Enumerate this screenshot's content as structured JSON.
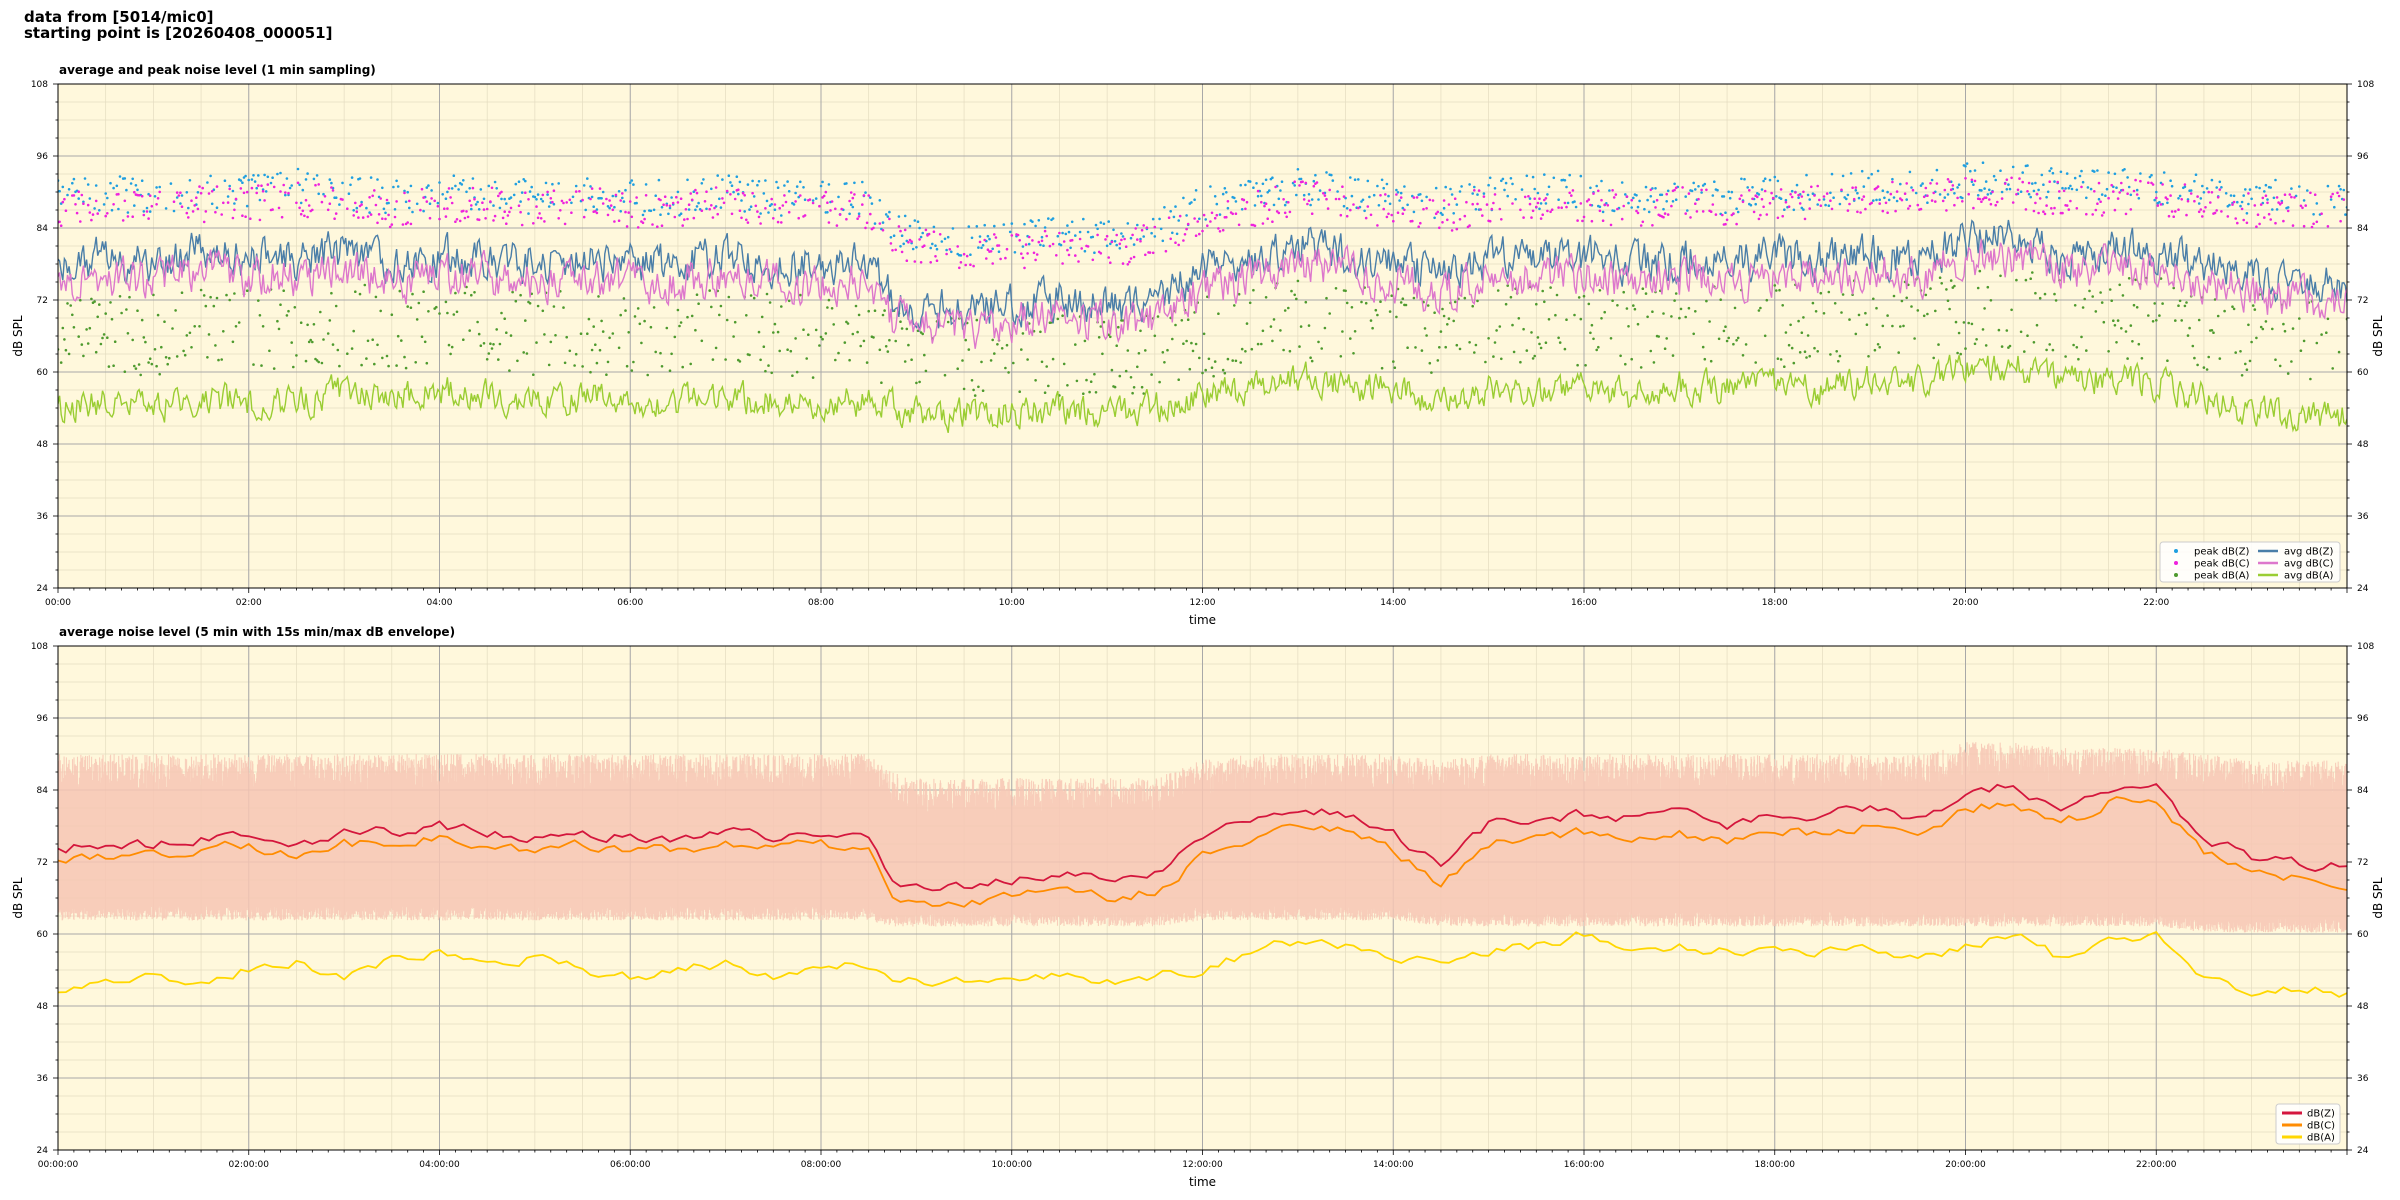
{
  "header": {
    "line1": "data from [5014/mic0]",
    "line2": "starting point is [20260408_000051]"
  },
  "colors": {
    "background": "#fff8dc",
    "peak_z": "#1f9fe0",
    "peak_c": "#ee22dd",
    "peak_a": "#4e9a2e",
    "avg_z": "#4a7ea8",
    "avg_c": "#dd77cc",
    "avg_a": "#9acd32",
    "env": "#f7c6b4",
    "db_z": "#d4163c",
    "db_c": "#ff8c00",
    "db_a": "#ffd700"
  },
  "chart_data": [
    {
      "type": "line",
      "title": "average and peak noise level (1 min sampling)",
      "xlabel": "time",
      "ylabel": "dB SPL",
      "x_unit": "hours from 00:00",
      "xlim": [
        0,
        24
      ],
      "ylim": [
        24,
        108
      ],
      "yticks": [
        24,
        36,
        48,
        60,
        72,
        84,
        96,
        108
      ],
      "xticks": [
        0,
        2,
        4,
        6,
        8,
        10,
        12,
        14,
        16,
        18,
        20,
        22
      ],
      "xtick_labels": [
        "00:00",
        "02:00",
        "04:00",
        "06:00",
        "08:00",
        "10:00",
        "12:00",
        "14:00",
        "16:00",
        "18:00",
        "20:00",
        "22:00"
      ],
      "grid": true,
      "legend_position": "bottom-right",
      "x": [
        0,
        0.5,
        1,
        1.5,
        2,
        2.5,
        3,
        3.5,
        4,
        4.5,
        5,
        5.5,
        6,
        6.5,
        7,
        7.5,
        8,
        8.5,
        8.75,
        9,
        9.5,
        10,
        10.5,
        11,
        11.5,
        12,
        12.5,
        13,
        13.5,
        14,
        14.5,
        15,
        15.5,
        16,
        16.5,
        17,
        17.5,
        18,
        18.5,
        19,
        19.5,
        20,
        20.5,
        21,
        21.5,
        22,
        22.5,
        23,
        23.5,
        24
      ],
      "series": [
        {
          "name": "peak dB(Z)",
          "kind": "scatter",
          "values": [
            89,
            90,
            89,
            90,
            90,
            91,
            90,
            89,
            90,
            90,
            89,
            90,
            89,
            89,
            90,
            89,
            89,
            89,
            84,
            83,
            82,
            82,
            83,
            82,
            84,
            88,
            89,
            91,
            90,
            89,
            88,
            90,
            90,
            90,
            89,
            90,
            89,
            90,
            90,
            91,
            91,
            92,
            92,
            91,
            91,
            91,
            90,
            89,
            89,
            89
          ]
        },
        {
          "name": "peak dB(C)",
          "kind": "scatter",
          "values": [
            87,
            88,
            87,
            88,
            88,
            89,
            88,
            87,
            88,
            88,
            87,
            88,
            87,
            87,
            88,
            87,
            87,
            87,
            82,
            81,
            80,
            80,
            81,
            80,
            82,
            86,
            87,
            89,
            88,
            87,
            86,
            88,
            88,
            88,
            87,
            88,
            87,
            88,
            88,
            89,
            89,
            90,
            90,
            89,
            89,
            89,
            88,
            87,
            87,
            87
          ]
        },
        {
          "name": "peak dB(A)",
          "kind": "scatter",
          "values": [
            66,
            67,
            66,
            68,
            67,
            67,
            68,
            67,
            68,
            67,
            66,
            67,
            66,
            67,
            67,
            66,
            66,
            66,
            64,
            62,
            62,
            63,
            63,
            62,
            63,
            66,
            67,
            69,
            68,
            67,
            66,
            68,
            68,
            68,
            67,
            68,
            67,
            68,
            67,
            69,
            69,
            70,
            70,
            69,
            69,
            69,
            67,
            66,
            66,
            65
          ]
        },
        {
          "name": "avg dB(Z)",
          "kind": "line",
          "values": [
            78,
            79,
            78,
            80,
            79,
            79,
            80,
            78,
            79,
            79,
            78,
            79,
            78,
            78,
            79,
            78,
            78,
            78,
            72,
            71,
            70,
            71,
            72,
            71,
            72,
            77,
            78,
            81,
            80,
            78,
            76,
            79,
            79,
            79,
            78,
            79,
            78,
            79,
            79,
            80,
            79,
            82,
            82,
            80,
            80,
            80,
            78,
            76,
            75,
            74
          ]
        },
        {
          "name": "avg dB(C)",
          "kind": "line",
          "values": [
            75,
            76,
            75,
            77,
            76,
            76,
            77,
            75,
            76,
            76,
            75,
            76,
            75,
            75,
            76,
            75,
            75,
            75,
            69,
            68,
            67,
            68,
            69,
            68,
            69,
            74,
            75,
            78,
            77,
            75,
            73,
            76,
            76,
            76,
            75,
            76,
            75,
            76,
            76,
            77,
            76,
            79,
            79,
            77,
            77,
            77,
            75,
            73,
            72,
            71
          ]
        },
        {
          "name": "avg dB(A)",
          "kind": "line",
          "values": [
            54,
            55,
            54,
            56,
            55,
            55,
            57,
            56,
            57,
            56,
            55,
            56,
            55,
            55,
            56,
            55,
            55,
            55,
            54,
            53,
            53,
            53,
            54,
            53,
            54,
            56,
            57,
            59,
            58,
            57,
            55,
            57,
            57,
            57,
            56,
            58,
            57,
            58,
            57,
            59,
            58,
            61,
            61,
            59,
            59,
            58,
            56,
            53,
            53,
            52
          ]
        }
      ]
    },
    {
      "type": "line",
      "title": "average noise level (5 min with 15s min/max dB envelope)",
      "xlabel": "time",
      "ylabel": "dB SPL",
      "x_unit": "hours from 00:00",
      "xlim": [
        0,
        24
      ],
      "ylim": [
        24,
        108
      ],
      "yticks": [
        24,
        36,
        48,
        60,
        72,
        84,
        96,
        108
      ],
      "xticks": [
        0,
        2,
        4,
        6,
        8,
        10,
        12,
        14,
        16,
        18,
        20,
        22
      ],
      "xtick_labels": [
        "00:00:00",
        "02:00:00",
        "04:00:00",
        "06:00:00",
        "08:00:00",
        "10:00:00",
        "12:00:00",
        "14:00:00",
        "16:00:00",
        "18:00:00",
        "20:00:00",
        "22:00:00"
      ],
      "grid": true,
      "legend_position": "bottom-right",
      "x": [
        0,
        0.5,
        1,
        1.5,
        2,
        2.5,
        3,
        3.5,
        4,
        4.5,
        5,
        5.5,
        6,
        6.5,
        7,
        7.5,
        8,
        8.5,
        8.75,
        9,
        9.5,
        10,
        10.5,
        11,
        11.5,
        12,
        12.5,
        13,
        13.5,
        14,
        14.5,
        15,
        15.5,
        16,
        16.5,
        17,
        17.5,
        18,
        18.5,
        19,
        19.5,
        20,
        20.5,
        21,
        21.5,
        22,
        22.5,
        23,
        23.5,
        24
      ],
      "envelope": {
        "min": [
          63,
          63,
          63,
          63,
          63,
          63,
          63,
          63,
          63,
          63,
          63,
          63,
          63,
          63,
          63,
          63,
          63,
          63,
          62,
          62,
          62,
          62,
          62,
          62,
          62,
          63,
          63,
          63,
          63,
          63,
          62,
          62,
          62,
          62,
          62,
          62,
          62,
          62,
          62,
          62,
          62,
          62,
          62,
          62,
          62,
          62,
          61,
          61,
          61,
          61
        ],
        "max": [
          90,
          90,
          90,
          90,
          90,
          90,
          90,
          90,
          90,
          90,
          90,
          90,
          90,
          90,
          90,
          90,
          90,
          90,
          87,
          86,
          86,
          86,
          86,
          86,
          86,
          89,
          90,
          90,
          90,
          90,
          89,
          90,
          90,
          90,
          90,
          90,
          90,
          90,
          90,
          90,
          90,
          92,
          92,
          91,
          91,
          91,
          90,
          89,
          89,
          89
        ]
      },
      "series": [
        {
          "name": "dB(Z)",
          "values": [
            74,
            75,
            75,
            76,
            77,
            75,
            77,
            77,
            78,
            77,
            76,
            77,
            76,
            76,
            77,
            76,
            77,
            76,
            69,
            68,
            68,
            69,
            70,
            69,
            70,
            76,
            79,
            81,
            80,
            77,
            71,
            78,
            79,
            80,
            79,
            80,
            78,
            80,
            80,
            81,
            79,
            83,
            85,
            80,
            84,
            84,
            76,
            73,
            72,
            71
          ]
        },
        {
          "name": "dB(C)",
          "values": [
            72,
            73,
            73,
            74,
            75,
            73,
            75,
            75,
            76,
            75,
            74,
            75,
            74,
            74,
            75,
            74,
            75,
            74,
            66,
            65,
            65,
            66,
            67,
            66,
            67,
            73,
            76,
            78,
            77,
            74,
            68,
            75,
            76,
            77,
            76,
            77,
            75,
            77,
            77,
            78,
            76,
            81,
            82,
            78,
            82,
            82,
            74,
            70,
            69,
            68
          ]
        },
        {
          "name": "dB(A)",
          "values": [
            50,
            52,
            53,
            52,
            54,
            55,
            53,
            56,
            57,
            55,
            56,
            54,
            53,
            54,
            55,
            53,
            54,
            55,
            52,
            52,
            52,
            52,
            53,
            52,
            53,
            54,
            57,
            59,
            58,
            56,
            55,
            57,
            58,
            60,
            57,
            58,
            57,
            58,
            57,
            58,
            56,
            58,
            60,
            56,
            59,
            60,
            53,
            50,
            51,
            50
          ]
        }
      ]
    }
  ]
}
